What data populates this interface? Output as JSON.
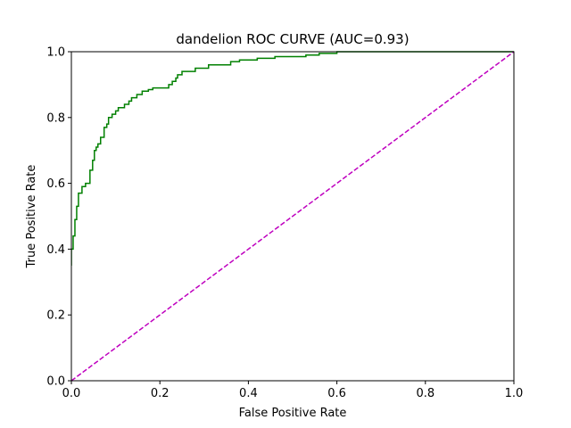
{
  "chart_data": {
    "type": "line",
    "title": "dandelion ROC CURVE (AUC=0.93)",
    "xlabel": "False Positive Rate",
    "ylabel": "True Positive Rate",
    "xlim": [
      0,
      1
    ],
    "ylim": [
      0,
      1
    ],
    "xticks": [
      "0.0",
      "0.2",
      "0.4",
      "0.6",
      "0.8",
      "1.0"
    ],
    "yticks": [
      "0.0",
      "0.2",
      "0.4",
      "0.6",
      "0.8",
      "1.0"
    ],
    "grid": false,
    "series": [
      {
        "color": "#008000",
        "style": "solid",
        "x": [
          0.0,
          0.0,
          0.004,
          0.004,
          0.008,
          0.008,
          0.012,
          0.012,
          0.016,
          0.016,
          0.024,
          0.024,
          0.032,
          0.032,
          0.042,
          0.042,
          0.048,
          0.048,
          0.052,
          0.052,
          0.056,
          0.056,
          0.06,
          0.06,
          0.066,
          0.066,
          0.074,
          0.074,
          0.08,
          0.08,
          0.084,
          0.084,
          0.092,
          0.092,
          0.1,
          0.1,
          0.106,
          0.106,
          0.12,
          0.12,
          0.13,
          0.13,
          0.136,
          0.136,
          0.148,
          0.148,
          0.16,
          0.16,
          0.174,
          0.174,
          0.184,
          0.184,
          0.22,
          0.22,
          0.228,
          0.228,
          0.236,
          0.236,
          0.24,
          0.24,
          0.25,
          0.25,
          0.28,
          0.28,
          0.31,
          0.31,
          0.36,
          0.36,
          0.38,
          0.38,
          0.42,
          0.42,
          0.46,
          0.46,
          0.53,
          0.53,
          0.56,
          0.56,
          0.6,
          0.6,
          0.66,
          0.66,
          1.0
        ],
        "y": [
          0.35,
          0.4,
          0.4,
          0.44,
          0.44,
          0.49,
          0.49,
          0.53,
          0.53,
          0.57,
          0.57,
          0.59,
          0.59,
          0.6,
          0.6,
          0.64,
          0.64,
          0.67,
          0.67,
          0.7,
          0.7,
          0.71,
          0.71,
          0.72,
          0.72,
          0.74,
          0.74,
          0.77,
          0.77,
          0.78,
          0.78,
          0.8,
          0.8,
          0.81,
          0.81,
          0.82,
          0.82,
          0.83,
          0.83,
          0.84,
          0.84,
          0.85,
          0.85,
          0.86,
          0.86,
          0.87,
          0.87,
          0.88,
          0.88,
          0.885,
          0.885,
          0.89,
          0.89,
          0.9,
          0.9,
          0.91,
          0.91,
          0.92,
          0.92,
          0.93,
          0.93,
          0.94,
          0.94,
          0.95,
          0.95,
          0.96,
          0.96,
          0.97,
          0.97,
          0.975,
          0.975,
          0.98,
          0.98,
          0.985,
          0.985,
          0.99,
          0.99,
          0.995,
          0.995,
          1.0,
          1.0,
          1.0,
          1.0
        ]
      },
      {
        "color": "#bf00bf",
        "style": "dashed",
        "x": [
          0,
          1
        ],
        "y": [
          0,
          1
        ]
      }
    ]
  }
}
